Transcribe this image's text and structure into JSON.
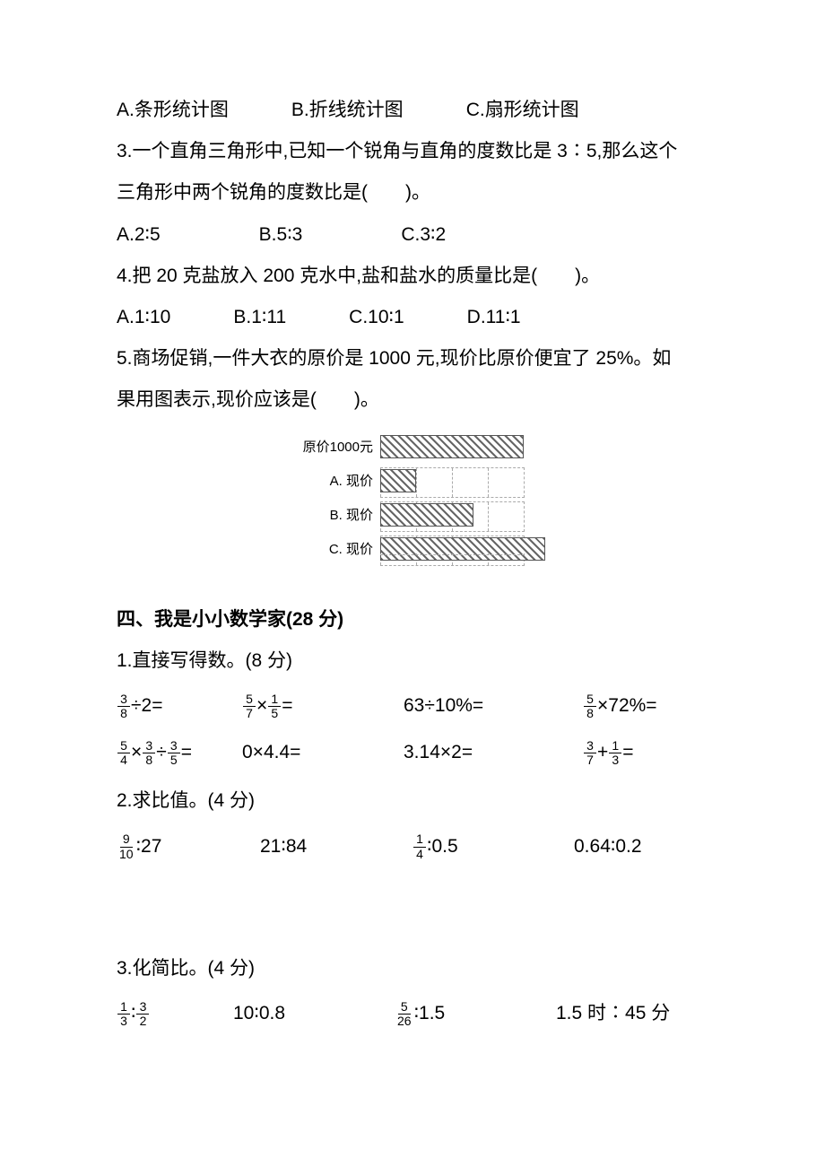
{
  "q2_options": {
    "a": "A.条形统计图",
    "b": "B.折线统计图",
    "c": "C.扇形统计图"
  },
  "q3": {
    "text1": "3.一个直角三角形中,已知一个锐角与直角的度数比是 3∶5,那么这个",
    "text2": "三角形中两个锐角的度数比是(　　)。",
    "a": "A.2∶5",
    "b": "B.5∶3",
    "c": "C.3∶2"
  },
  "q4": {
    "text": "4.把 20 克盐放入 200 克水中,盐和盐水的质量比是(　　)。",
    "a": "A.1∶10",
    "b": "B.1∶11",
    "c": "C.10∶1",
    "d": "D.11∶1"
  },
  "q5": {
    "text1": "5.商场促销,一件大衣的原价是 1000 元,现价比原价便宜了 25%。如",
    "text2": "果用图表示,现价应该是(　　)。",
    "chart": {
      "full_width": 160,
      "rows": [
        {
          "label": "原价1000元",
          "bar_pct": 100,
          "show_grid": false
        },
        {
          "label": "A. 现价",
          "bar_pct": 25,
          "show_grid": true
        },
        {
          "label": "B. 现价",
          "bar_pct": 65,
          "show_grid": true
        },
        {
          "label": "C. 现价",
          "bar_pct": 115,
          "show_grid": true,
          "bottom_grid": true
        }
      ]
    }
  },
  "section4_title": "四、我是小小数学家(28 分)",
  "calc1": {
    "title": "1.直接写得数。(8 分)",
    "r1c1_num": "3",
    "r1c1_den": "8",
    "r1c1_rest": "÷2=",
    "r1c2_a_num": "5",
    "r1c2_a_den": "7",
    "r1c2_mid": "×",
    "r1c2_b_num": "1",
    "r1c2_b_den": "5",
    "r1c2_rest": "=",
    "r1c3": "63÷10%=",
    "r1c4_num": "5",
    "r1c4_den": "8",
    "r1c4_rest": "×72%=",
    "r2c1_a_num": "5",
    "r2c1_a_den": "4",
    "r2c1_m1": "×",
    "r2c1_b_num": "3",
    "r2c1_b_den": "8",
    "r2c1_m2": "÷",
    "r2c1_c_num": "3",
    "r2c1_c_den": "5",
    "r2c1_rest": "=",
    "r2c2": "0×4.4=",
    "r2c3": "3.14×2=",
    "r2c4_a_num": "3",
    "r2c4_a_den": "7",
    "r2c4_mid": "+",
    "r2c4_b_num": "1",
    "r2c4_b_den": "3",
    "r2c4_rest": "="
  },
  "calc2": {
    "title": "2.求比值。(4 分)",
    "c1_num": "9",
    "c1_den": "10",
    "c1_rest": "∶27",
    "c2": "21∶84",
    "c3_num": "1",
    "c3_den": "4",
    "c3_rest": "∶0.5",
    "c4": "0.64∶0.2"
  },
  "calc3": {
    "title": "3.化简比。(4 分)",
    "c1_a_num": "1",
    "c1_a_den": "3",
    "c1_mid": "∶",
    "c1_b_num": "3",
    "c1_b_den": "2",
    "c2": "10∶0.8",
    "c3_num": "5",
    "c3_den": "26",
    "c3_rest": "∶1.5",
    "c4": "1.5 时∶45 分"
  }
}
